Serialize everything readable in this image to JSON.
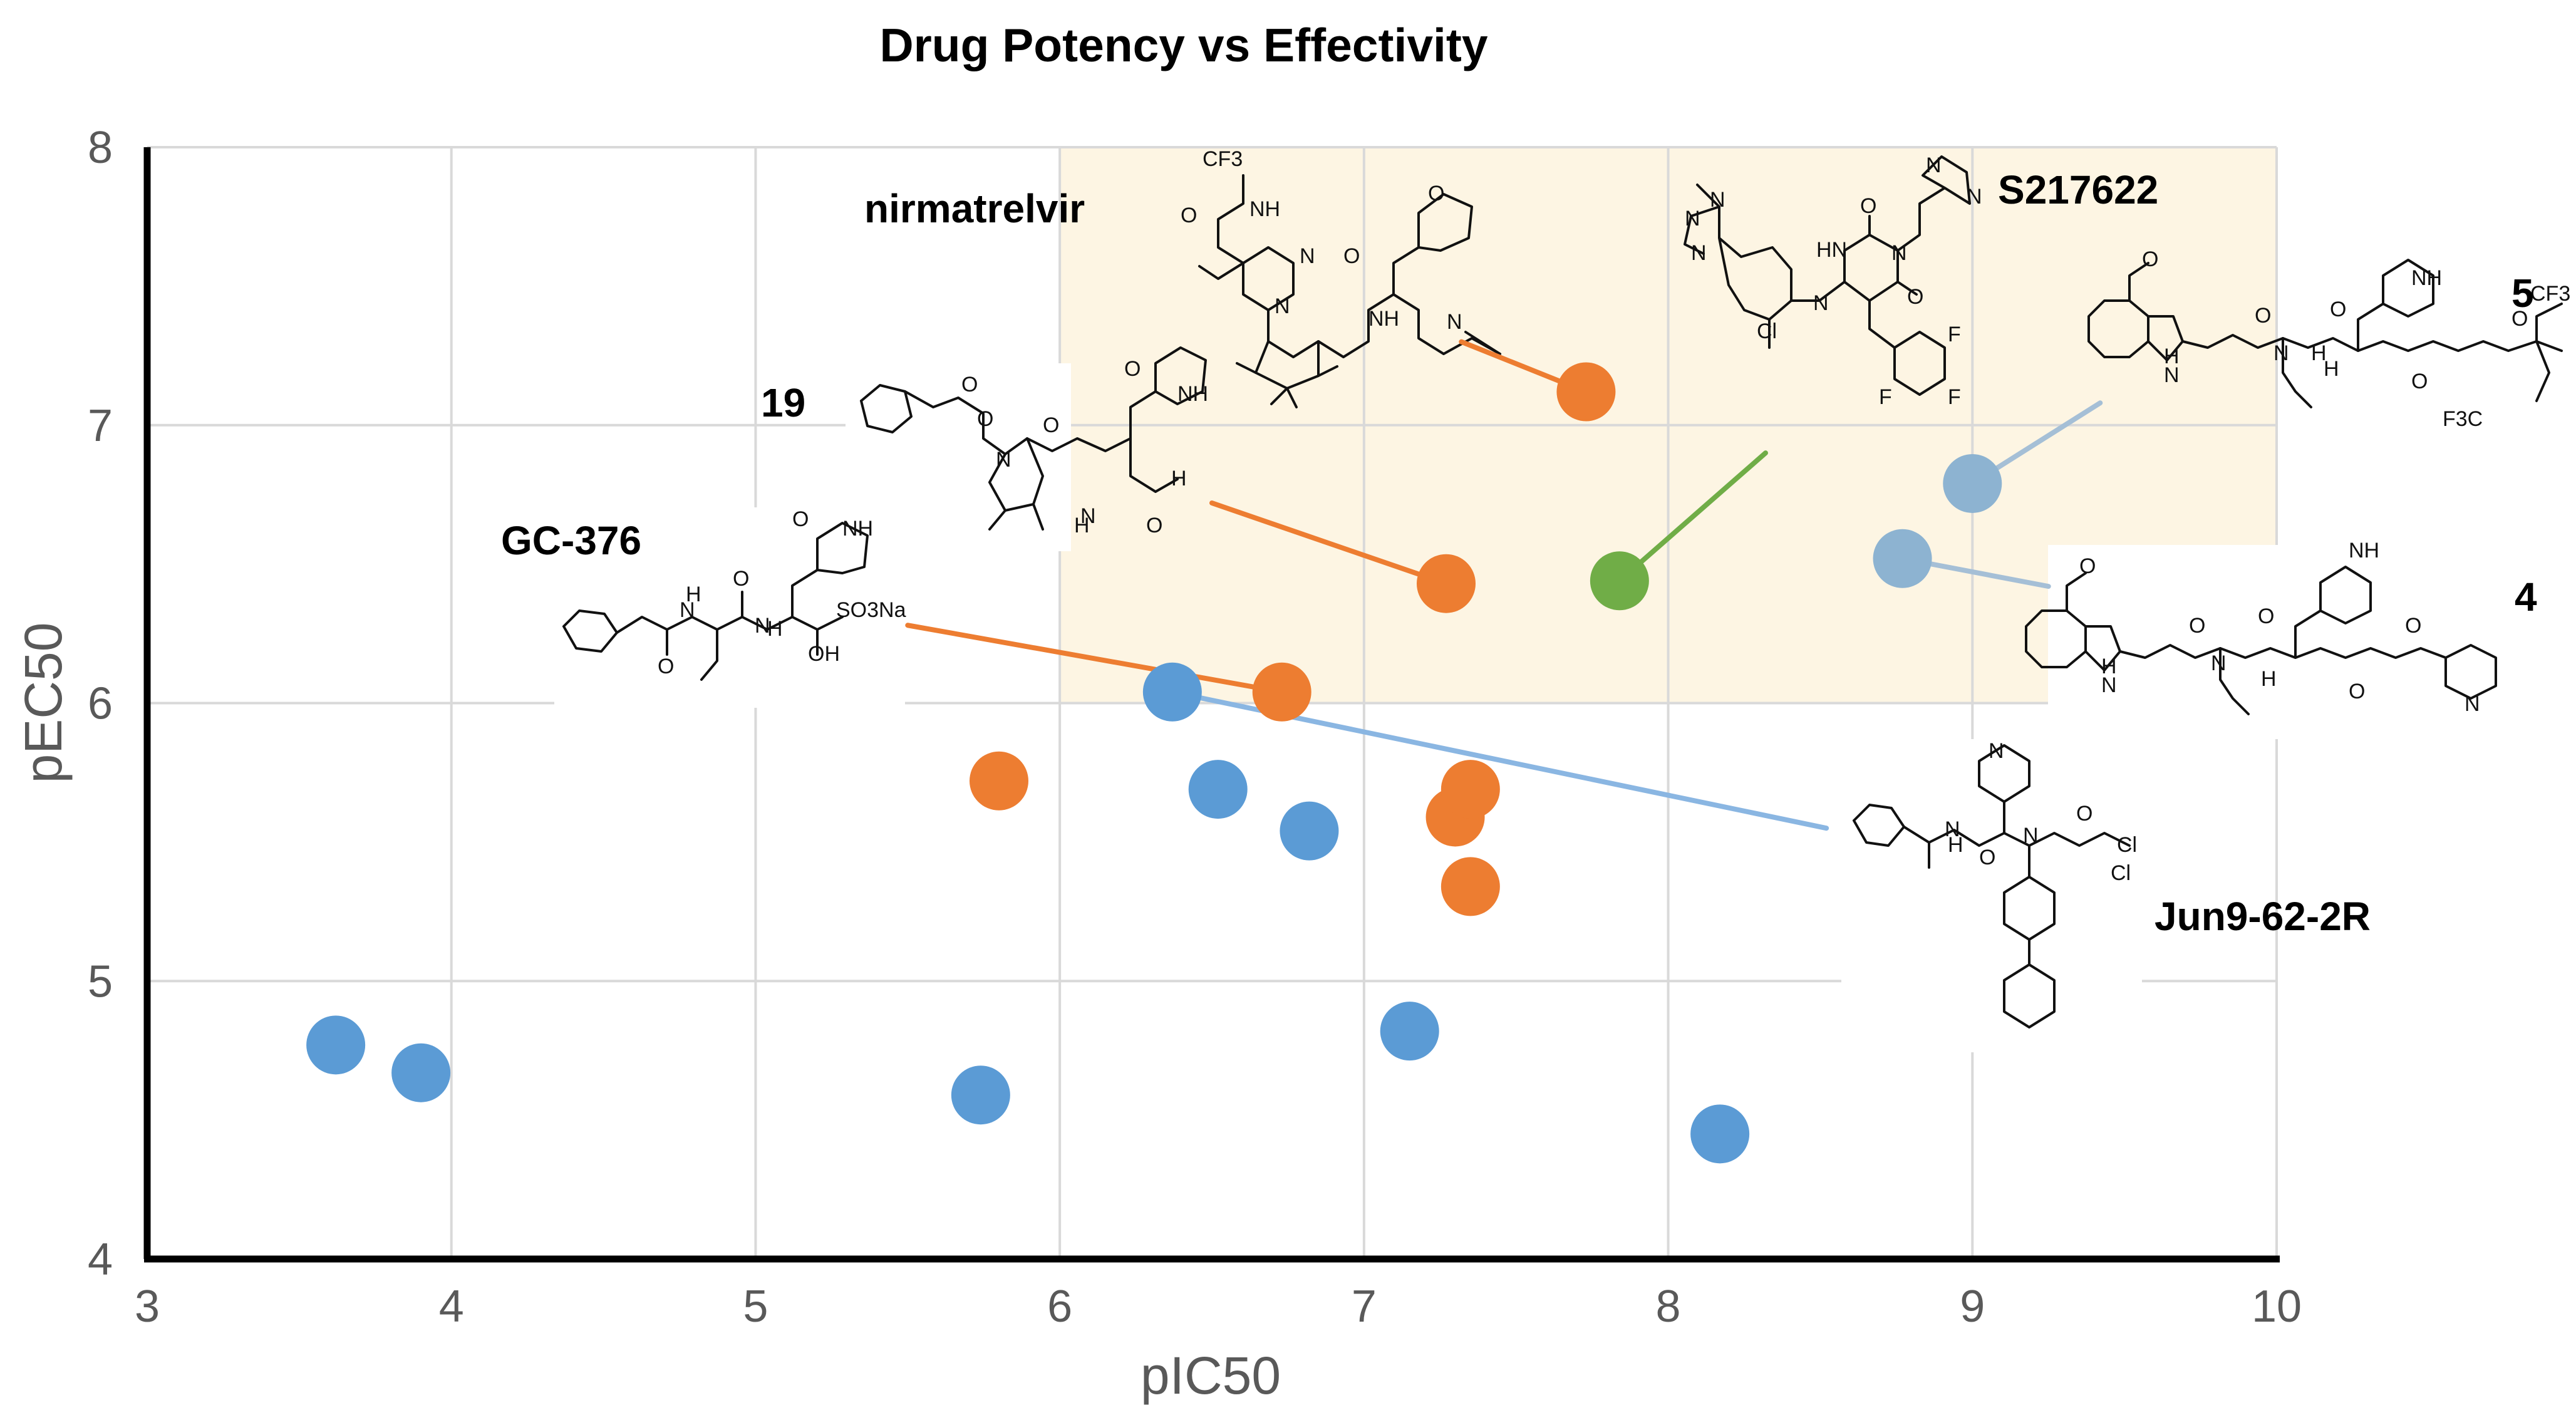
{
  "chart_data": {
    "type": "scatter",
    "title": "Drug Potency vs Effectivity",
    "xlabel": "pIC50",
    "ylabel": "pEC50",
    "xlim": [
      3,
      10
    ],
    "ylim": [
      4,
      8
    ],
    "xticks": [
      "3",
      "4",
      "5",
      "6",
      "7",
      "8",
      "9",
      "10"
    ],
    "yticks": [
      "4",
      "5",
      "6",
      "7",
      "8"
    ],
    "grid": true,
    "highlight_region": {
      "x": [
        6,
        10
      ],
      "y": [
        6,
        8
      ],
      "color": "#fdf5e3"
    },
    "series": [
      {
        "name": "blue",
        "color": "#5b9bd5",
        "points": [
          {
            "x": 3.62,
            "y": 4.77
          },
          {
            "x": 3.9,
            "y": 4.67
          },
          {
            "x": 5.74,
            "y": 4.59
          },
          {
            "x": 6.37,
            "y": 6.04
          },
          {
            "x": 6.52,
            "y": 5.69
          },
          {
            "x": 6.82,
            "y": 5.54
          },
          {
            "x": 7.15,
            "y": 4.82
          },
          {
            "x": 8.17,
            "y": 4.45
          }
        ]
      },
      {
        "name": "orange",
        "color": "#ed7d31",
        "points": [
          {
            "x": 5.8,
            "y": 5.72
          },
          {
            "x": 6.73,
            "y": 6.04
          },
          {
            "x": 7.3,
            "y": 5.59
          },
          {
            "x": 7.35,
            "y": 5.69
          },
          {
            "x": 7.35,
            "y": 5.34
          },
          {
            "x": 7.27,
            "y": 6.43
          },
          {
            "x": 7.73,
            "y": 7.12
          }
        ]
      },
      {
        "name": "green",
        "color": "#70ad47",
        "points": [
          {
            "x": 7.84,
            "y": 6.44
          }
        ]
      },
      {
        "name": "light-blue",
        "color": "#8db3d1",
        "points": [
          {
            "x": 9.0,
            "y": 6.79
          },
          {
            "x": 8.77,
            "y": 6.52
          }
        ]
      }
    ],
    "annotations": [
      {
        "label": "nirmatrelvir",
        "line_color": "#ed7d31",
        "line_from": {
          "x": 7.32,
          "y": 7.3
        },
        "line_to": {
          "x": 7.73,
          "y": 7.12
        }
      },
      {
        "label": "S217622",
        "line_color": "#70ad47",
        "line_from": {
          "x": 8.32,
          "y": 6.9
        },
        "line_to": {
          "x": 7.84,
          "y": 6.44
        }
      },
      {
        "label": "19",
        "line_color": "#ed7d31",
        "line_from": {
          "x": 6.5,
          "y": 6.72
        },
        "line_to": {
          "x": 7.27,
          "y": 6.43
        }
      },
      {
        "label": "GC-376",
        "line_color": "#ed7d31",
        "line_from": {
          "x": 5.5,
          "y": 6.28
        },
        "line_to": {
          "x": 6.73,
          "y": 6.04
        }
      },
      {
        "label": "5",
        "line_color": "#a5bfd6",
        "line_from": {
          "x": 9.42,
          "y": 7.08
        },
        "line_to": {
          "x": 9.0,
          "y": 6.79
        }
      },
      {
        "label": "4",
        "line_color": "#a5bfd6",
        "line_from": {
          "x": 9.25,
          "y": 6.42
        },
        "line_to": {
          "x": 8.77,
          "y": 6.52
        }
      },
      {
        "label": "Jun9-62-2R",
        "line_color": "#8ab6e2",
        "line_from": {
          "x": 8.52,
          "y": 5.55
        },
        "line_to": {
          "x": 6.37,
          "y": 6.04
        }
      }
    ],
    "structure_labels": {
      "nirmatrelvir": [
        "CF3",
        "NH",
        "O",
        "N",
        "O",
        "N",
        "NH",
        "O",
        "N"
      ],
      "s217622": [
        "N",
        "N",
        "N",
        "N",
        "HN",
        "N",
        "O",
        "O",
        "N",
        "N",
        "Cl",
        "F",
        "F",
        "F"
      ],
      "c19": [
        "O",
        "O",
        "N",
        "O",
        "N",
        "H",
        "O",
        "O",
        "NH",
        "H"
      ],
      "gc376": [
        "O",
        "NH",
        "H",
        "N",
        "O",
        "N",
        "O",
        "H",
        "SO3Na",
        "OH"
      ],
      "c5": [
        "O",
        "NH",
        "N",
        "H",
        "O",
        "N",
        "H",
        "O",
        "H",
        "O",
        "O",
        "CF3",
        "F3C"
      ],
      "c4": [
        "O",
        "NH",
        "N",
        "H",
        "O",
        "N",
        "H",
        "O",
        "O",
        "O",
        "N"
      ],
      "jun": [
        "N",
        "H",
        "N",
        "O",
        "N",
        "O",
        "Cl",
        "Cl"
      ]
    }
  }
}
